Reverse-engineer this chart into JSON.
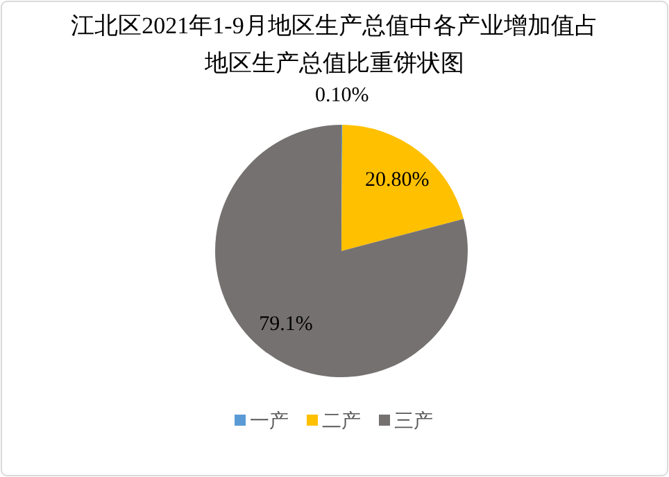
{
  "chart_data": {
    "type": "pie",
    "title": "江北区2021年1-9月地区生产总值中各产业增加值占地区生产总值比重饼状图",
    "categories": [
      "一产",
      "二产",
      "三产"
    ],
    "values": [
      0.1,
      20.8,
      79.1
    ],
    "colors": [
      "#5b9bd5",
      "#ffc000",
      "#767171"
    ],
    "value_labels": [
      "0.10%",
      "20.80%",
      "79.1%"
    ],
    "legend": "bottom"
  }
}
